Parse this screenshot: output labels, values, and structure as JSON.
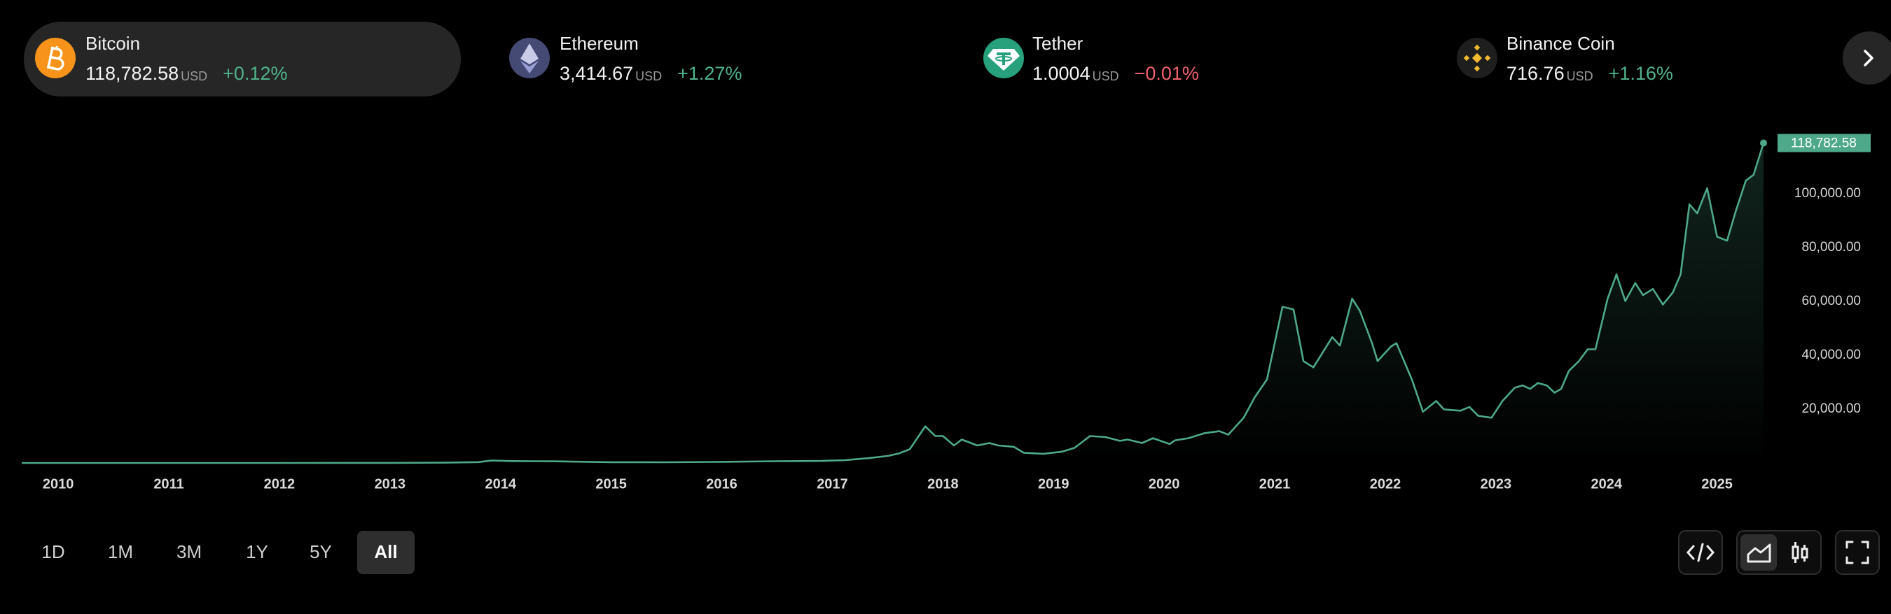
{
  "tickers": [
    {
      "name": "Bitcoin",
      "price": "118,782.58",
      "unit": "USD",
      "change": "+0.12%",
      "change_color": "#4fb38c"
    },
    {
      "name": "Ethereum",
      "price": "3,414.67",
      "unit": "USD",
      "change": "+1.27%",
      "change_color": "#4fb38c"
    },
    {
      "name": "Tether",
      "price": "1.0004",
      "unit": "USD",
      "change": "−0.01%",
      "change_color": "#f0616d"
    },
    {
      "name": "Binance Coin",
      "price": "716.76",
      "unit": "USD",
      "change": "+1.16%",
      "change_color": "#4fb38c"
    }
  ],
  "ranges": [
    "1D",
    "1M",
    "3M",
    "1Y",
    "5Y",
    "All"
  ],
  "active_range": 5,
  "chart_data": {
    "type": "area",
    "color": "#4ea88a",
    "grid": false,
    "xlim": [
      2009.67,
      2025.42
    ],
    "xticks": [
      2010,
      2011,
      2012,
      2013,
      2014,
      2015,
      2016,
      2017,
      2018,
      2019,
      2020,
      2021,
      2022,
      2023,
      2024,
      2025
    ],
    "ylim": [
      0,
      120000
    ],
    "yticks": [
      {
        "value": 20000,
        "label": "20,000.00"
      },
      {
        "value": 40000,
        "label": "40,000.00"
      },
      {
        "value": 60000,
        "label": "60,000.00"
      },
      {
        "value": 80000,
        "label": "80,000.00"
      },
      {
        "value": 100000,
        "label": "100,000.00"
      }
    ],
    "x": [
      2009.67,
      2011,
      2012,
      2013,
      2013.5,
      2013.8,
      2013.92,
      2014.1,
      2014.5,
      2015,
      2015.5,
      2016,
      2016.5,
      2016.9,
      2017.11,
      2017.33,
      2017.5,
      2017.6,
      2017.7,
      2017.84,
      2017.93,
      2018.0,
      2018.1,
      2018.17,
      2018.31,
      2018.42,
      2018.5,
      2018.64,
      2018.73,
      2018.91,
      2019.08,
      2019.19,
      2019.33,
      2019.47,
      2019.6,
      2019.67,
      2019.8,
      2019.9,
      2020.05,
      2020.1,
      2020.22,
      2020.36,
      2020.5,
      2020.58,
      2020.72,
      2020.82,
      2020.93,
      2021.07,
      2021.17,
      2021.26,
      2021.35,
      2021.52,
      2021.59,
      2021.7,
      2021.77,
      2021.88,
      2021.93,
      2022.05,
      2022.1,
      2022.24,
      2022.34,
      2022.46,
      2022.53,
      2022.68,
      2022.76,
      2022.84,
      2022.96,
      2023.06,
      2023.17,
      2023.24,
      2023.31,
      2023.38,
      2023.46,
      2023.53,
      2023.59,
      2023.66,
      2023.75,
      2023.83,
      2023.9,
      2024.01,
      2024.09,
      2024.17,
      2024.26,
      2024.33,
      2024.42,
      2024.51,
      2024.6,
      2024.67,
      2024.75,
      2024.82,
      2024.91,
      2025.0,
      2025.09,
      2025.17,
      2025.26,
      2025.33,
      2025.42
    ],
    "values": [
      0,
      1,
      5,
      15,
      100,
      300,
      900,
      700,
      600,
      280,
      250,
      420,
      650,
      750,
      1000,
      1800,
      2600,
      3500,
      5100,
      13600,
      10000,
      10000,
      6500,
      8700,
      6500,
      7400,
      6500,
      6000,
      3800,
      3400,
      4200,
      5600,
      10000,
      9600,
      8200,
      8700,
      7400,
      9200,
      7000,
      8400,
      9200,
      11000,
      11800,
      10500,
      16800,
      24400,
      31000,
      58000,
      57000,
      37800,
      35500,
      46700,
      43600,
      61000,
      56500,
      44500,
      37800,
      43200,
      44500,
      31000,
      19000,
      23000,
      19900,
      19400,
      20800,
      17500,
      16800,
      23000,
      27900,
      28800,
      27500,
      29700,
      28800,
      26100,
      27500,
      34200,
      37800,
      42200,
      42200,
      61000,
      70000,
      60100,
      66800,
      62300,
      64600,
      58800,
      63300,
      70000,
      96000,
      92700,
      102000,
      84000,
      82500,
      93600,
      104800,
      107000,
      118782.58
    ],
    "value_labels": [
      null,
      null,
      null,
      null,
      null,
      null,
      null,
      null,
      null,
      null,
      null,
      null,
      null,
      null,
      null,
      null,
      null,
      null,
      null,
      null,
      null,
      null,
      null,
      null,
      null,
      null,
      null,
      null,
      null,
      null,
      null,
      null,
      null,
      null,
      null,
      null,
      null,
      null,
      null,
      null,
      null,
      null,
      null,
      null,
      null,
      null,
      null,
      null,
      null,
      null,
      null,
      null,
      null,
      null,
      null,
      null,
      null,
      null,
      null,
      null,
      null,
      null,
      null,
      null,
      null,
      null,
      null,
      null,
      null,
      null,
      null,
      null,
      null,
      null,
      null,
      null,
      null,
      null,
      null,
      null,
      null,
      null,
      null,
      null,
      null,
      null,
      null,
      null,
      null,
      null,
      null,
      null,
      null,
      null,
      null,
      null,
      "118,782.58"
    ]
  }
}
